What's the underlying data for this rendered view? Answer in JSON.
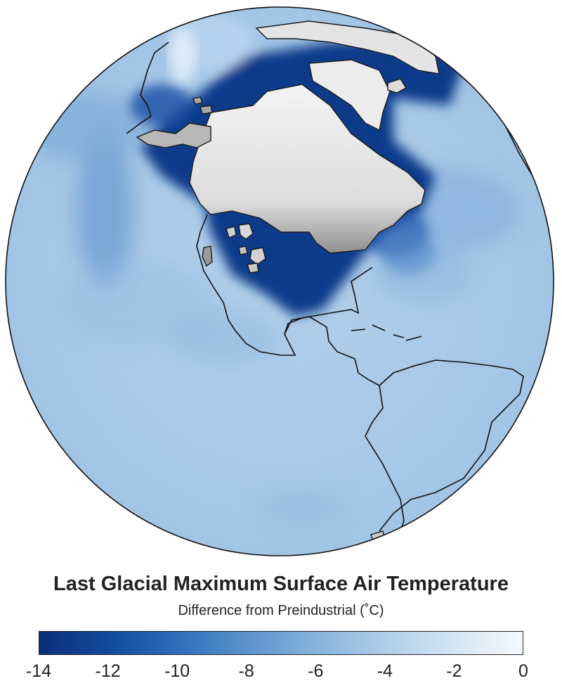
{
  "title": "Last Glacial Maximum Surface Air Temperature",
  "subtitle": "Difference from Preindustrial (˚C)",
  "colorbar": {
    "min": -14,
    "max": 0,
    "ticks": [
      "-14",
      "-12",
      "-10",
      "-8",
      "-6",
      "-4",
      "-2",
      "0"
    ],
    "colors": [
      "#0b2e78",
      "#124a9c",
      "#2c6fba",
      "#5b93cc",
      "#86b3dc",
      "#aecde9",
      "#d4e5f4",
      "#f5f9fd"
    ]
  },
  "colors": {
    "ice_sheet": "#e8e8e8",
    "coastline": "#111111",
    "ocean_base": "#aecbe8"
  }
}
